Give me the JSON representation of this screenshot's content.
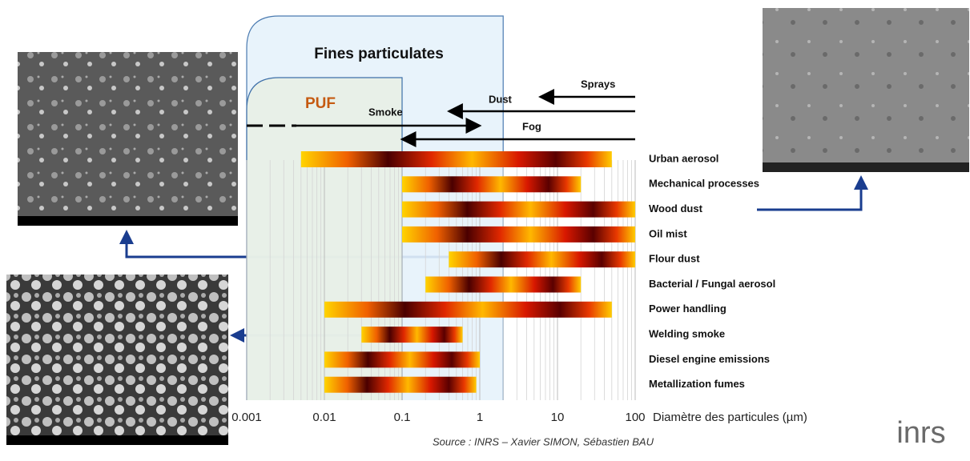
{
  "chart_data": {
    "type": "range-bar",
    "title": "Fines particulates",
    "xlabel": "Diamètre des particules (µm)",
    "source": "Source : INRS – Xavier SIMON, Sébastien BAU",
    "logo": "inrs",
    "xscale": "log",
    "xlim": [
      0.001,
      100
    ],
    "xticks": [
      0.001,
      0.01,
      0.1,
      1,
      10,
      100
    ],
    "grid": true,
    "categories": [
      "Urban aerosol",
      "Mechanical processes",
      "Wood dust",
      "Oil mist",
      "Flour dust",
      "Bacterial / Fungal aerosol",
      "Power handling",
      "Welding smoke",
      "Diesel engine emissions",
      "Metallization fumes"
    ],
    "values": [
      [
        0.005,
        50
      ],
      [
        0.1,
        20
      ],
      [
        0.1,
        100
      ],
      [
        0.1,
        100
      ],
      [
        0.4,
        100
      ],
      [
        0.2,
        20
      ],
      [
        0.01,
        50
      ],
      [
        0.03,
        0.6
      ],
      [
        0.01,
        1
      ],
      [
        0.01,
        0.9
      ]
    ],
    "regions": [
      {
        "label": "Fines particulates",
        "from": 0.001,
        "to": 2
      },
      {
        "label": "PUF",
        "from": 0.001,
        "to": 0.1
      }
    ],
    "arrows": [
      {
        "label": "Sprays",
        "from": 100,
        "to": 6
      },
      {
        "label": "Dust",
        "from": 100,
        "to": 0.4
      },
      {
        "label": "Smoke",
        "from": 0.001,
        "to": 1
      },
      {
        "label": "Fog",
        "from": 100,
        "to": 0.1
      }
    ]
  }
}
